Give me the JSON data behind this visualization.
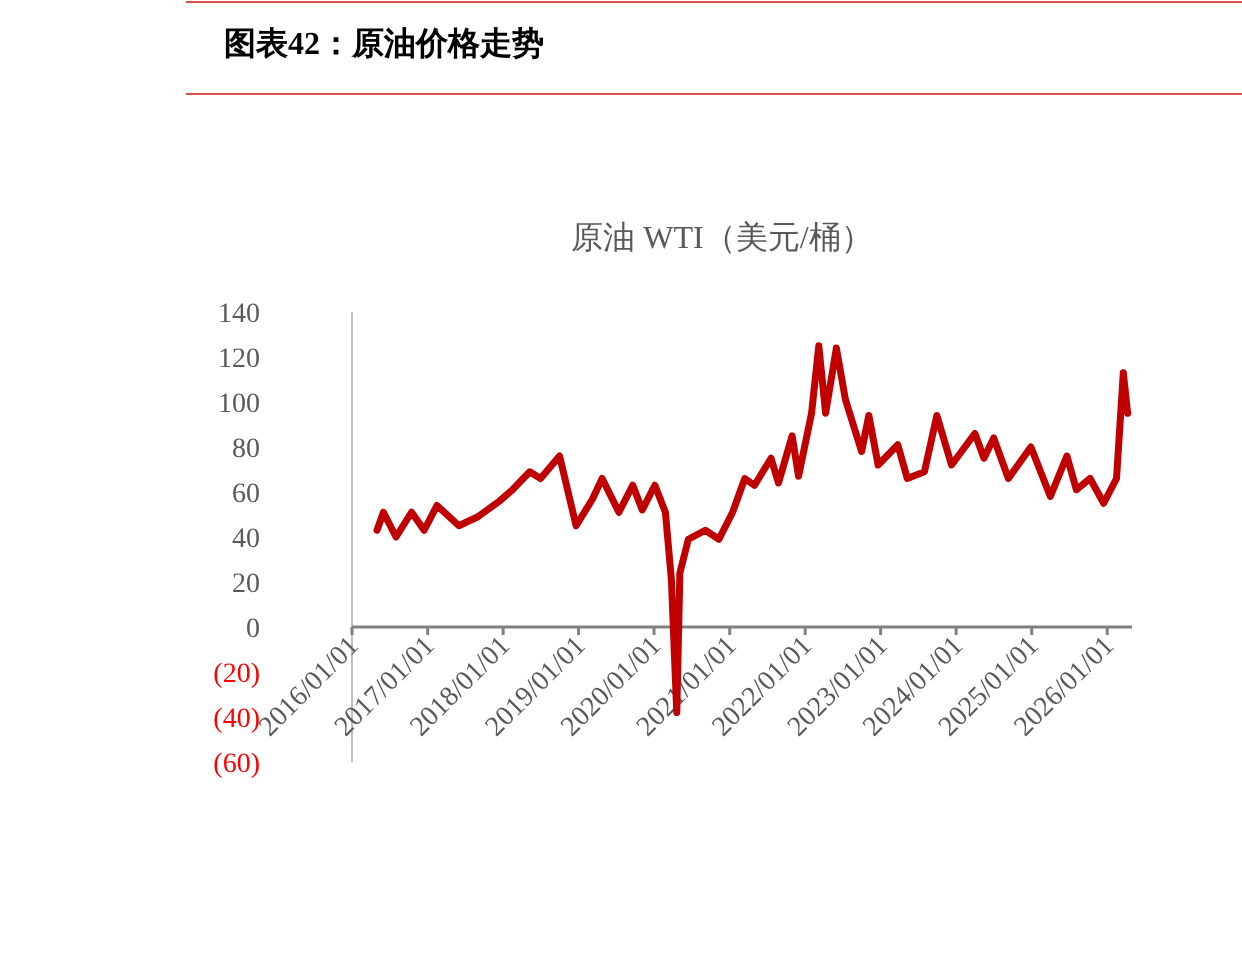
{
  "chart_data": {
    "type": "line",
    "title": "图表42：原油价格走势",
    "subtitle": "原油 WTI（美元/桶）",
    "x": [
      "2016-05-01",
      "2016-06-01",
      "2016-08-01",
      "2016-10-15",
      "2016-12-15",
      "2017-02-15",
      "2017-06-01",
      "2017-09-01",
      "2017-12-15",
      "2018-02-15",
      "2018-05-10",
      "2018-07-01",
      "2018-10-01",
      "2018-12-20",
      "2019-03-10",
      "2019-04-25",
      "2019-07-15",
      "2019-09-20",
      "2019-11-05",
      "2020-01-05",
      "2020-02-25",
      "2020-03-25",
      "2020-04-20",
      "2020-05-05",
      "2020-06-15",
      "2020-09-05",
      "2020-11-10",
      "2021-01-15",
      "2021-03-15",
      "2021-05-01",
      "2021-07-20",
      "2021-08-25",
      "2021-10-30",
      "2021-11-30",
      "2022-02-01",
      "2022-03-08",
      "2022-04-10",
      "2022-06-01",
      "2022-07-15",
      "2022-10-01",
      "2022-11-05",
      "2022-12-20",
      "2023-03-25",
      "2023-05-10",
      "2023-08-01",
      "2023-09-30",
      "2023-12-10",
      "2024-04-01",
      "2024-05-15",
      "2024-07-01",
      "2024-09-10",
      "2024-12-28",
      "2025-04-01",
      "2025-06-20",
      "2025-08-05",
      "2025-10-10",
      "2025-12-15",
      "2026-02-15",
      "2026-03-20",
      "2026-04-10"
    ],
    "series": [
      {
        "color": "#c00000",
        "values": [
          43,
          51,
          40,
          51,
          43,
          54,
          45,
          49,
          56,
          61,
          69,
          66,
          76,
          45,
          57,
          66,
          51,
          63,
          52,
          63,
          51,
          21,
          -38,
          24,
          39,
          43,
          39,
          51,
          66,
          63,
          75,
          64,
          85,
          67,
          95,
          125,
          95,
          124,
          101,
          78,
          94,
          72,
          81,
          66,
          69,
          94,
          72,
          86,
          75,
          84,
          66,
          80,
          58,
          76,
          61,
          66,
          55,
          66,
          113,
          95
        ]
      }
    ],
    "xlim": [
      "2016-01-01",
      "2026-05-01"
    ],
    "xticks": [
      {
        "value": "2016-01-01",
        "label": "2016/01/01"
      },
      {
        "value": "2017-01-01",
        "label": "2017/01/01"
      },
      {
        "value": "2018-01-01",
        "label": "2018/01/01"
      },
      {
        "value": "2019-01-01",
        "label": "2019/01/01"
      },
      {
        "value": "2020-01-01",
        "label": "2020/01/01"
      },
      {
        "value": "2021-01-01",
        "label": "2021/01/01"
      },
      {
        "value": "2022-01-01",
        "label": "2022/01/01"
      },
      {
        "value": "2023-01-01",
        "label": "2023/01/01"
      },
      {
        "value": "2024-01-01",
        "label": "2024/01/01"
      },
      {
        "value": "2025-01-01",
        "label": "2025/01/01"
      },
      {
        "value": "2026-01-01",
        "label": "2026/01/01"
      }
    ],
    "ylim": [
      -60,
      140
    ],
    "yticks": [
      {
        "value": -60,
        "label": "(60)"
      },
      {
        "value": -40,
        "label": "(40)"
      },
      {
        "value": -20,
        "label": "(20)"
      },
      0,
      20,
      40,
      60,
      80,
      100,
      120,
      140
    ],
    "grid": false
  }
}
